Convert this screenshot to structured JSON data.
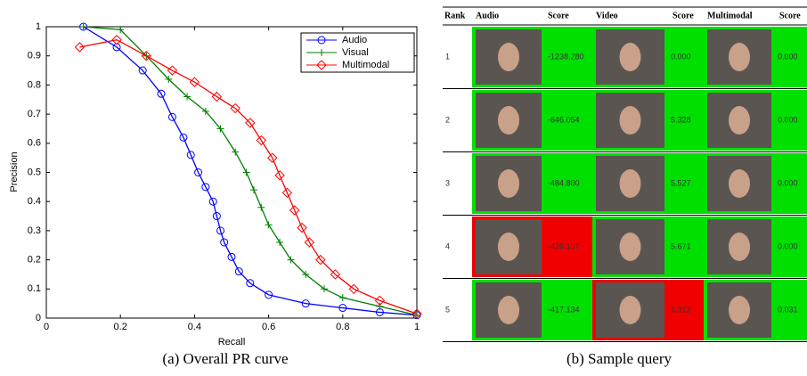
{
  "chart_data": {
    "type": "line",
    "xlabel": "Recall",
    "ylabel": "Precision",
    "xlim": [
      0,
      1
    ],
    "ylim": [
      0,
      1
    ],
    "xticks": [
      0,
      0.2,
      0.4,
      0.6,
      0.8,
      1
    ],
    "yticks": [
      0,
      0.1,
      0.2,
      0.3,
      0.4,
      0.5,
      0.6,
      0.7,
      0.8,
      0.9,
      1
    ],
    "legend": "upper right",
    "series": [
      {
        "name": "Audio",
        "color": "#0000ff",
        "marker": "circle",
        "x": [
          0.1,
          0.19,
          0.26,
          0.31,
          0.34,
          0.37,
          0.39,
          0.41,
          0.43,
          0.45,
          0.46,
          0.47,
          0.48,
          0.5,
          0.52,
          0.55,
          0.6,
          0.7,
          0.8,
          0.9,
          1.0
        ],
        "values": [
          1.0,
          0.93,
          0.85,
          0.77,
          0.69,
          0.62,
          0.56,
          0.5,
          0.45,
          0.4,
          0.35,
          0.3,
          0.26,
          0.21,
          0.16,
          0.12,
          0.08,
          0.05,
          0.035,
          0.02,
          0.01
        ]
      },
      {
        "name": "Visual",
        "color": "#007f00",
        "marker": "plus",
        "x": [
          0.1,
          0.2,
          0.27,
          0.33,
          0.38,
          0.43,
          0.47,
          0.51,
          0.54,
          0.56,
          0.58,
          0.6,
          0.63,
          0.66,
          0.7,
          0.75,
          0.8,
          0.9,
          1.0
        ],
        "values": [
          1.0,
          0.99,
          0.9,
          0.82,
          0.76,
          0.71,
          0.65,
          0.57,
          0.5,
          0.44,
          0.38,
          0.32,
          0.26,
          0.2,
          0.15,
          0.1,
          0.07,
          0.04,
          0.01
        ]
      },
      {
        "name": "Multimodal",
        "color": "#ff0000",
        "marker": "diamond",
        "x": [
          0.09,
          0.19,
          0.27,
          0.34,
          0.4,
          0.46,
          0.51,
          0.55,
          0.58,
          0.61,
          0.63,
          0.65,
          0.67,
          0.69,
          0.71,
          0.74,
          0.78,
          0.83,
          0.9,
          1.0
        ],
        "values": [
          0.93,
          0.955,
          0.9,
          0.85,
          0.81,
          0.76,
          0.72,
          0.67,
          0.61,
          0.55,
          0.49,
          0.43,
          0.37,
          0.31,
          0.26,
          0.2,
          0.15,
          0.1,
          0.06,
          0.015
        ]
      }
    ]
  },
  "captions": [
    "(a) Overall PR curve",
    "(b) Sample query"
  ],
  "table": {
    "columns": [
      "Rank",
      "Audio",
      "Score",
      "Video",
      "Score",
      "Multimodal",
      "Score"
    ],
    "rows": [
      {
        "rank": "1",
        "cells": [
          {
            "score": "-1238.280",
            "color": "#00e000"
          },
          {
            "score": "0.000",
            "color": "#00e000"
          },
          {
            "score": "0.000",
            "color": "#00e000"
          }
        ]
      },
      {
        "rank": "2",
        "cells": [
          {
            "score": "-646.054",
            "color": "#00e000"
          },
          {
            "score": "5.328",
            "color": "#00e000"
          },
          {
            "score": "0.000",
            "color": "#00e000"
          }
        ]
      },
      {
        "rank": "3",
        "cells": [
          {
            "score": "-484.800",
            "color": "#00e000"
          },
          {
            "score": "5.527",
            "color": "#00e000"
          },
          {
            "score": "0.000",
            "color": "#00e000"
          }
        ]
      },
      {
        "rank": "4",
        "cells": [
          {
            "score": "-426.157",
            "color": "#f00000"
          },
          {
            "score": "5.671",
            "color": "#00e000"
          },
          {
            "score": "0.000",
            "color": "#00e000"
          }
        ]
      },
      {
        "rank": "5",
        "cells": [
          {
            "score": "-417.134",
            "color": "#00e000"
          },
          {
            "score": "6.312",
            "color": "#f00000"
          },
          {
            "score": "0.031",
            "color": "#00e000"
          }
        ]
      }
    ]
  }
}
